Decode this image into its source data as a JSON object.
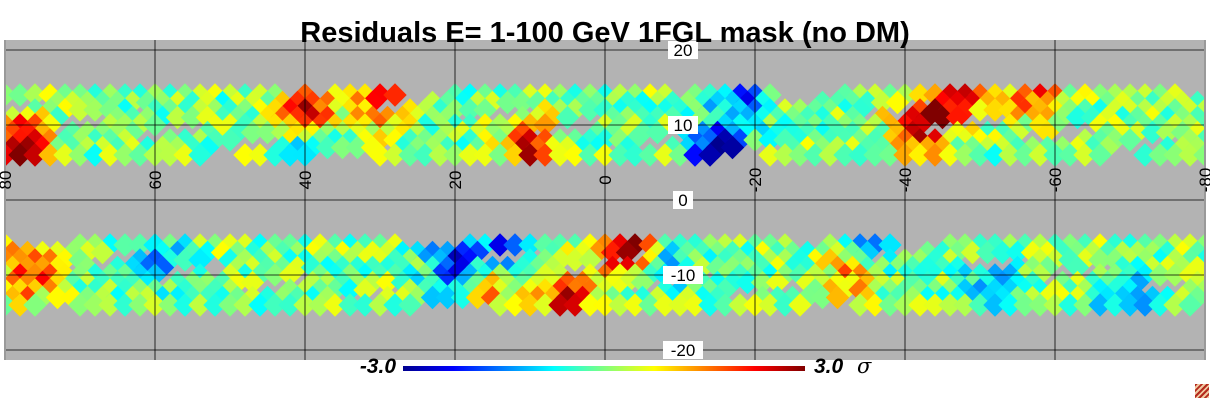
{
  "chart_data": {
    "type": "heatmap",
    "title": "Residuals E= 1-100 GeV 1FGL mask (no DM)",
    "xlabel": "",
    "ylabel": "",
    "x_axis": {
      "range": [
        80,
        -80
      ],
      "ticks": [
        80,
        60,
        40,
        20,
        0,
        -20,
        -40,
        -60,
        -80
      ],
      "tick_labels": [
        "80",
        "60",
        "40",
        "20",
        "0",
        "-20",
        "-40",
        "-60",
        "-80"
      ]
    },
    "y_axis": {
      "range": [
        -20,
        20
      ],
      "ticks": [
        20,
        10,
        0,
        -10,
        -20
      ],
      "tick_labels": [
        "20",
        "10",
        "0",
        "-10",
        "-20"
      ]
    },
    "grid": true,
    "masked_color": "#b3b3b3",
    "colorbar": {
      "min_label": "-3.0",
      "max_label": "3.0",
      "unit": "σ",
      "range": [
        -3,
        3
      ],
      "colormap": [
        "#00008f",
        "#0000ff",
        "#00ffff",
        "#ffff00",
        "#ff0000",
        "#800000"
      ]
    },
    "pixel_size_deg": 2,
    "bands": [
      {
        "name": "north",
        "b_min": 5,
        "b_max": 15
      },
      {
        "name": "south",
        "b_min": -15,
        "b_max": -5
      }
    ],
    "hotspots": [
      {
        "l": 78,
        "b": 7,
        "sigma": 3.0
      },
      {
        "l": 40,
        "b": 11,
        "sigma": 2.6
      },
      {
        "l": 30,
        "b": 13,
        "sigma": 2.0
      },
      {
        "l": 10,
        "b": 7,
        "sigma": 2.3
      },
      {
        "l": -42,
        "b": 10,
        "sigma": 2.8
      },
      {
        "l": -47,
        "b": 13,
        "sigma": 2.2
      },
      {
        "l": -57,
        "b": 14,
        "sigma": 2.0
      },
      {
        "l": 77,
        "b": -10,
        "sigma": 2.2
      },
      {
        "l": -2,
        "b": -7,
        "sigma": 2.0
      },
      {
        "l": -5,
        "b": -6,
        "sigma": 1.8
      },
      {
        "l": 5,
        "b": -13,
        "sigma": 2.2
      },
      {
        "l": -33,
        "b": -10,
        "sigma": 1.8
      },
      {
        "l": 15,
        "b": -12,
        "sigma": 1.5
      }
    ],
    "coldspots": [
      {
        "l": -15,
        "b": 6,
        "sigma": -3.0
      },
      {
        "l": -18,
        "b": 14,
        "sigma": -1.9
      },
      {
        "l": 20,
        "b": -9,
        "sigma": -2.4
      },
      {
        "l": 13,
        "b": -7,
        "sigma": -2.0
      },
      {
        "l": -8,
        "b": -8,
        "sigma": -1.6
      },
      {
        "l": -35,
        "b": -7,
        "sigma": -1.9
      },
      {
        "l": -70,
        "b": -13,
        "sigma": -1.6
      },
      {
        "l": 40,
        "b": 6,
        "sigma": -1.5
      },
      {
        "l": -52,
        "b": -12,
        "sigma": -1.4
      },
      {
        "l": 60,
        "b": -8,
        "sigma": -1.3
      }
    ]
  }
}
